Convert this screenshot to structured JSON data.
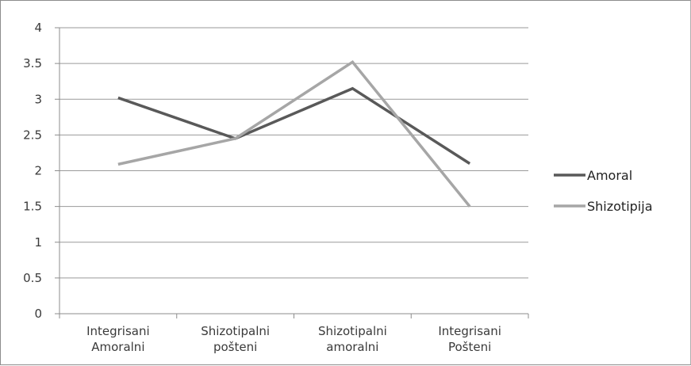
{
  "chart_data": {
    "type": "line",
    "categories": [
      [
        "Integrisani",
        "Amoralni"
      ],
      [
        "Shizotipalni",
        "pošteni"
      ],
      [
        "Shizotipalni",
        "amoralni"
      ],
      [
        "Integrisani",
        "Pošteni"
      ]
    ],
    "series": [
      {
        "name": "Amoral",
        "values": [
          3.02,
          2.45,
          3.15,
          2.1
        ],
        "color": "#595959"
      },
      {
        "name": "Shizotipija",
        "values": [
          2.09,
          2.45,
          3.52,
          1.5
        ],
        "color": "#a6a6a6"
      }
    ],
    "ylim": [
      0,
      4
    ],
    "yticks": [
      "0",
      "0.5",
      "1",
      "1.5",
      "2",
      "2.5",
      "3",
      "3.5",
      "4"
    ],
    "grid": true,
    "legend_position": "right"
  }
}
